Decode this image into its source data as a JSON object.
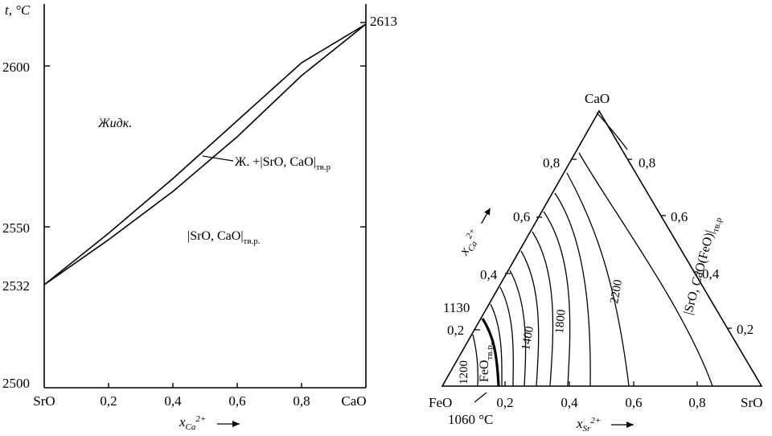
{
  "left_diagram": {
    "t_axis_label": "t, °C",
    "t_ticks": [
      "2600",
      "2550",
      "2532",
      "2500"
    ],
    "top_value": "2613",
    "x_ticks": [
      "SrO",
      "0,2",
      "0,4",
      "0,6",
      "0,8",
      "CaO"
    ],
    "x_axis_label": "x",
    "x_axis_sub": "Ca",
    "x_axis_sup": "2+",
    "region_liquid": "Жидк.",
    "region_two_phase": "Ж. +|SrO, CaO|",
    "region_two_phase_sub": "тв.р",
    "region_solid": "|SrO, CaO|",
    "region_solid_sub": "тв.р.",
    "liquidus_points": [
      [
        0,
        2532
      ],
      [
        0.2,
        2548
      ],
      [
        0.4,
        2565
      ],
      [
        0.6,
        2583
      ],
      [
        0.8,
        2601
      ],
      [
        1,
        2613
      ]
    ],
    "solidus_points": [
      [
        0,
        2532
      ],
      [
        0.2,
        2546
      ],
      [
        0.4,
        2561
      ],
      [
        0.6,
        2578
      ],
      [
        0.8,
        2597
      ],
      [
        1,
        2613
      ]
    ]
  },
  "ternary_diagram": {
    "vertex_top": "CaO",
    "vertex_left": "FeO",
    "vertex_right": "SrO",
    "left_edge_ticks": [
      "0,8",
      "0,6",
      "0,4",
      "0,2"
    ],
    "right_edge_ticks": [
      "0,8",
      "0,6",
      "0,4",
      "0,2"
    ],
    "bottom_ticks": [
      "0,2",
      "0,4",
      "0,6",
      "0,8"
    ],
    "bottom_axis_label": "x",
    "bottom_axis_sub": "Sr",
    "bottom_axis_sup": "2+",
    "left_axis_label": "x",
    "left_axis_sub": "Ca",
    "left_axis_sup": "2+",
    "isotherms": [
      "1200",
      "1400",
      "1800",
      "2200"
    ],
    "label_1130": "1130",
    "label_1060": "1060 °C",
    "region_feo": "FeO",
    "region_feo_sub": "тв.р.",
    "region_solid_solution": "|SrO, CaO(FeO)|",
    "region_solid_solution_sub": "тв.р"
  }
}
